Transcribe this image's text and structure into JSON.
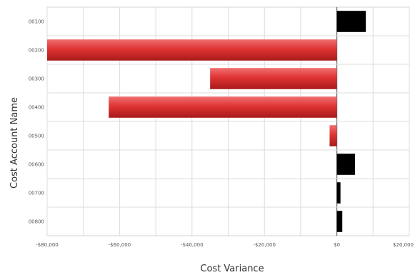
{
  "chart_data": {
    "type": "bar",
    "orientation": "horizontal",
    "xlabel": "Cost Variance",
    "ylabel": "Cost Account Name",
    "xlim": [
      -80000,
      20000
    ],
    "x_ticks": [
      -80000,
      -60000,
      -40000,
      -20000,
      0,
      20000
    ],
    "x_tick_labels": [
      "-$80,000",
      "-$60,000",
      "-$40,000",
      "-$20,000",
      "$0",
      "$20,000"
    ],
    "categories": [
      "00100",
      "00200",
      "00300",
      "00400",
      "00500",
      "00600",
      "00700",
      "00800"
    ],
    "values": [
      8000,
      -80000,
      -35000,
      -63000,
      -2000,
      5000,
      1000,
      1500
    ],
    "grid": true,
    "colors": {
      "negative": "#d42a2a",
      "negative_highlight": "#f07070",
      "positive": "#000000"
    }
  }
}
